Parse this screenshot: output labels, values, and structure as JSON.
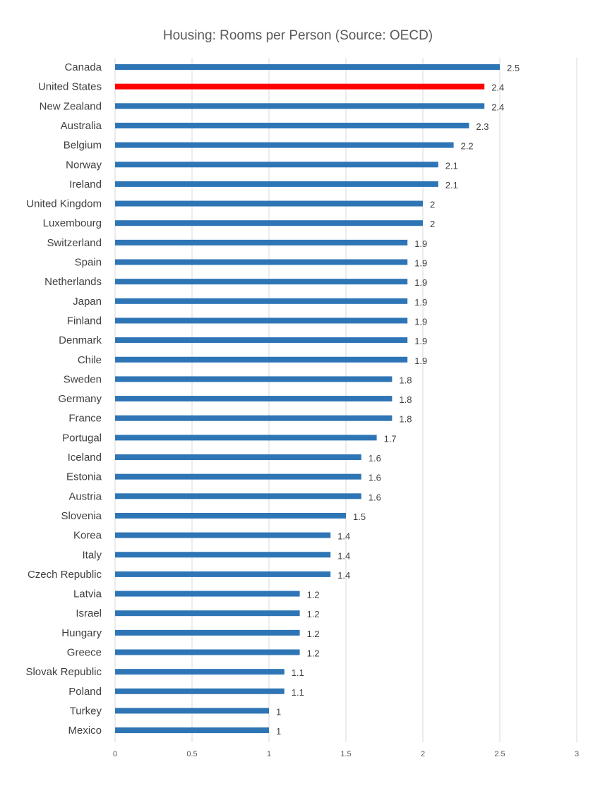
{
  "chart_data": {
    "type": "bar",
    "orientation": "horizontal",
    "title": "Housing: Rooms per Person (Source: OECD)",
    "xlim": [
      0,
      3
    ],
    "x_ticks": [
      "0",
      "0.5",
      "1",
      "1.5",
      "2",
      "2.5",
      "3"
    ],
    "grid": true,
    "bar_color": "#2e75b6",
    "highlight_color": "#ff0000",
    "highlight_category": "United States",
    "categories": [
      "Canada",
      "United States",
      "New Zealand",
      "Australia",
      "Belgium",
      "Norway",
      "Ireland",
      "United Kingdom",
      "Luxembourg",
      "Switzerland",
      "Spain",
      "Netherlands",
      "Japan",
      "Finland",
      "Denmark",
      "Chile",
      "Sweden",
      "Germany",
      "France",
      "Portugal",
      "Iceland",
      "Estonia",
      "Austria",
      "Slovenia",
      "Korea",
      "Italy",
      "Czech Republic",
      "Latvia",
      "Israel",
      "Hungary",
      "Greece",
      "Slovak Republic",
      "Poland",
      "Turkey",
      "Mexico"
    ],
    "values": [
      2.5,
      2.4,
      2.4,
      2.3,
      2.2,
      2.1,
      2.1,
      2,
      2,
      1.9,
      1.9,
      1.9,
      1.9,
      1.9,
      1.9,
      1.9,
      1.8,
      1.8,
      1.8,
      1.7,
      1.6,
      1.6,
      1.6,
      1.5,
      1.4,
      1.4,
      1.4,
      1.2,
      1.2,
      1.2,
      1.2,
      1.1,
      1.1,
      1,
      1
    ],
    "value_labels": [
      "2.5",
      "2.4",
      "2.4",
      "2.3",
      "2.2",
      "2.1",
      "2.1",
      "2",
      "2",
      "1.9",
      "1.9",
      "1.9",
      "1.9",
      "1.9",
      "1.9",
      "1.9",
      "1.8",
      "1.8",
      "1.8",
      "1.7",
      "1.6",
      "1.6",
      "1.6",
      "1.5",
      "1.4",
      "1.4",
      "1.4",
      "1.2",
      "1.2",
      "1.2",
      "1.2",
      "1.1",
      "1.1",
      "1",
      "1"
    ]
  }
}
